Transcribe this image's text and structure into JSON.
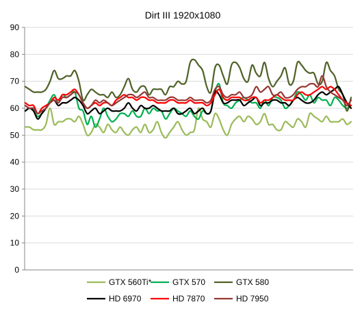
{
  "chart_data": {
    "type": "line",
    "title": "Dirt III 1920x1080",
    "xlabel": "",
    "ylabel": "",
    "ylim": [
      0,
      90
    ],
    "yticks": [
      0,
      10,
      20,
      30,
      40,
      50,
      60,
      70,
      80,
      90
    ],
    "grid": true,
    "legend_position": "bottom",
    "x": [
      1,
      2,
      3,
      4,
      5,
      6,
      7,
      8,
      9,
      10,
      11,
      12,
      13,
      14,
      15,
      16,
      17,
      18,
      19,
      20,
      21,
      22,
      23,
      24,
      25,
      26,
      27,
      28,
      29,
      30,
      31,
      32,
      33,
      34,
      35,
      36,
      37,
      38,
      39,
      40,
      41,
      42,
      43,
      44,
      45,
      46,
      47,
      48,
      49,
      50,
      51,
      52,
      53,
      54,
      55,
      56,
      57,
      58,
      59,
      60,
      61,
      62,
      63,
      64,
      65,
      66,
      67,
      68,
      69,
      70,
      71,
      72,
      73,
      74,
      75,
      76,
      77,
      78,
      79,
      80
    ],
    "series": [
      {
        "name": "GTX 560Ti*",
        "color": "#9bbb59",
        "values": [
          53,
          53,
          52,
          52,
          52,
          54,
          60,
          54,
          55,
          55,
          56,
          56,
          55,
          57,
          54,
          50,
          51,
          54,
          53,
          51,
          54,
          52,
          51,
          53,
          51,
          50,
          52,
          53,
          51,
          54,
          51,
          52,
          55,
          51,
          49,
          51,
          53,
          55,
          52,
          50,
          51,
          52,
          60,
          56,
          55,
          53,
          58,
          56,
          52,
          50,
          54,
          56,
          57,
          55,
          57,
          56,
          54,
          55,
          58,
          54,
          54,
          52,
          52,
          55,
          54,
          53,
          56,
          55,
          53,
          58,
          57,
          56,
          55,
          57,
          55,
          55,
          55,
          56,
          54,
          55
        ]
      },
      {
        "name": "GTX 570",
        "color": "#00b050",
        "values": [
          59,
          60,
          59,
          57,
          58,
          60,
          63,
          65,
          62,
          65,
          64,
          65,
          66,
          60,
          59,
          54,
          57,
          53,
          56,
          60,
          57,
          55,
          56,
          58,
          58,
          57,
          59,
          57,
          57,
          60,
          58,
          60,
          59,
          59,
          56,
          58,
          60,
          59,
          58,
          57,
          59,
          57,
          56,
          59,
          58,
          59,
          66,
          69,
          62,
          61,
          60,
          62,
          63,
          64,
          63,
          62,
          62,
          60,
          63,
          61,
          64,
          64,
          63,
          60,
          61,
          63,
          66,
          65,
          63,
          65,
          62,
          64,
          63,
          63,
          61,
          64,
          63,
          61,
          60,
          61
        ]
      },
      {
        "name": "GTX 580",
        "color": "#4f6228",
        "values": [
          68,
          67,
          66,
          66,
          66,
          67,
          70,
          74,
          71,
          71,
          72,
          72,
          74,
          70,
          63,
          65,
          67,
          66,
          65,
          65,
          64,
          66,
          64,
          65,
          68,
          71,
          67,
          66,
          68,
          68,
          65,
          67,
          67,
          67,
          65,
          68,
          68,
          70,
          69,
          70,
          77,
          78,
          76,
          74,
          68,
          66,
          75,
          76,
          72,
          69,
          76,
          77,
          75,
          71,
          70,
          76,
          73,
          72,
          77,
          71,
          68,
          70,
          72,
          75,
          69,
          70,
          77,
          76,
          74,
          73,
          73,
          69,
          70,
          77,
          74,
          72,
          67,
          65,
          59,
          64
        ]
      },
      {
        "name": "HD 6970",
        "color": "#000000",
        "values": [
          59,
          60,
          59,
          56,
          58,
          60,
          62,
          63,
          61,
          62,
          62,
          63,
          64,
          63,
          61,
          58,
          59,
          60,
          58,
          59,
          60,
          59,
          59,
          59,
          60,
          62,
          60,
          59,
          61,
          60,
          60,
          61,
          60,
          59,
          59,
          59,
          60,
          58,
          58,
          59,
          60,
          58,
          59,
          60,
          58,
          59,
          66,
          65,
          62,
          62,
          63,
          63,
          63,
          61,
          62,
          63,
          64,
          61,
          62,
          62,
          63,
          63,
          62,
          62,
          61,
          63,
          64,
          63,
          62,
          62,
          63,
          65,
          66,
          65,
          66,
          67,
          68,
          65,
          62,
          60
        ]
      },
      {
        "name": "HD 7870",
        "color": "#ff0000",
        "values": [
          62,
          61,
          61,
          58,
          60,
          61,
          62,
          64,
          63,
          65,
          65,
          66,
          67,
          65,
          62,
          60,
          61,
          62,
          61,
          62,
          62,
          61,
          63,
          64,
          65,
          64,
          64,
          63,
          64,
          64,
          63,
          63,
          62,
          62,
          62,
          63,
          63,
          62,
          62,
          62,
          63,
          62,
          62,
          62,
          61,
          62,
          65,
          67,
          64,
          63,
          64,
          64,
          64,
          63,
          63,
          64,
          64,
          62,
          63,
          63,
          64,
          65,
          64,
          63,
          63,
          63,
          65,
          66,
          65,
          65,
          66,
          67,
          68,
          67,
          68,
          67,
          65,
          63,
          62,
          61
        ]
      },
      {
        "name": "HD 7950",
        "color": "#953735",
        "values": [
          61,
          60,
          60,
          58,
          59,
          60,
          62,
          63,
          62,
          64,
          64,
          65,
          66,
          65,
          62,
          60,
          61,
          63,
          62,
          63,
          62,
          61,
          62,
          63,
          64,
          65,
          65,
          64,
          65,
          66,
          64,
          64,
          63,
          63,
          63,
          64,
          64,
          63,
          63,
          63,
          64,
          63,
          63,
          63,
          62,
          63,
          67,
          68,
          65,
          64,
          65,
          65,
          66,
          64,
          64,
          65,
          68,
          66,
          67,
          68,
          65,
          65,
          66,
          64,
          64,
          65,
          67,
          68,
          68,
          69,
          69,
          68,
          72,
          68,
          66,
          65,
          64,
          63,
          61,
          63
        ]
      }
    ]
  }
}
